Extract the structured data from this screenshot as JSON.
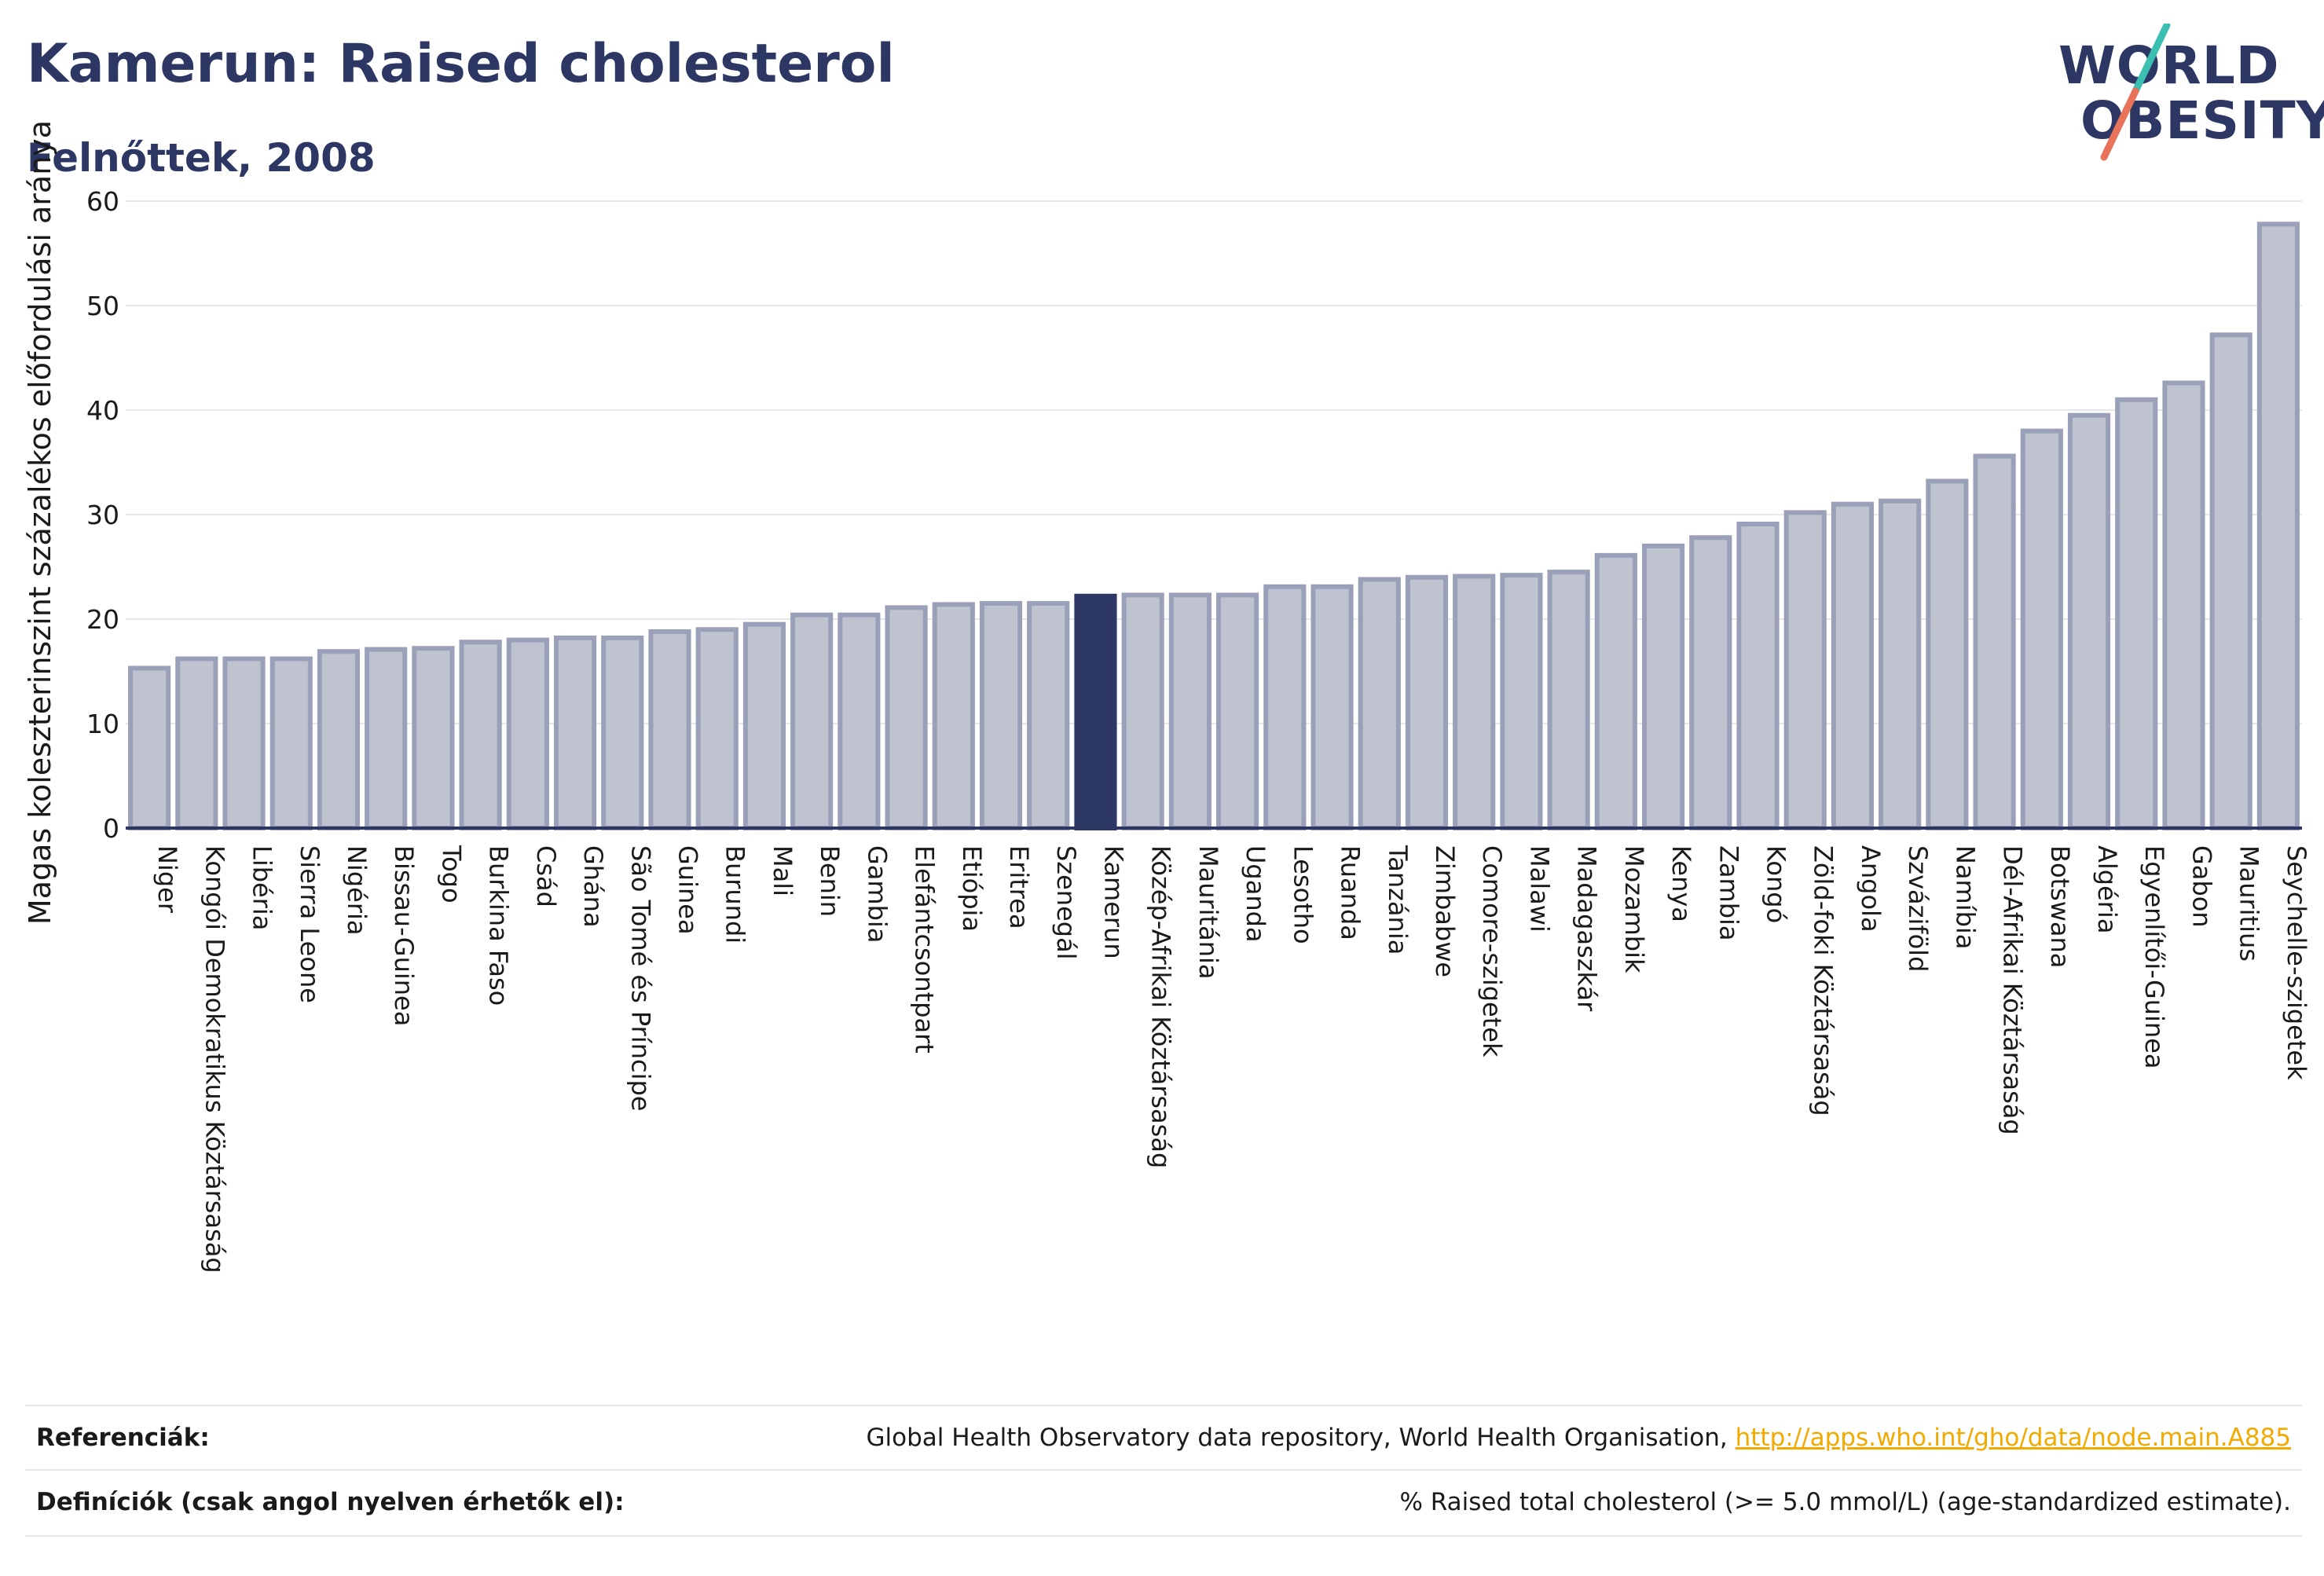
{
  "header": {
    "title": "Kamerun: Raised cholesterol",
    "subtitle": "Felnőttek, 2008"
  },
  "logo": {
    "line1": "WORLD",
    "line2": "OBESITY",
    "accent_colors": [
      "#3bbfb0",
      "#e8735a"
    ]
  },
  "footer": {
    "references_label": "Referenciák:",
    "references_text": "Global Health Observatory data repository, World Health Organisation, ",
    "references_link": "http://apps.who.int/gho/data/node.main.A885",
    "definitions_label": "Definíciók (csak angol nyelven érhetők el):",
    "definitions_text": "% Raised total cholesterol (>= 5.0 mmol/L) (age-standardized estimate)."
  },
  "colors": {
    "bar": "#bfc3d0",
    "bar_stroke": "#9aa0b8",
    "highlight": "#2c3764",
    "axis": "#2c3764",
    "grid": "#e6e8ee"
  },
  "chart_data": {
    "type": "bar",
    "ylabel": "Magas koleszterinszint százalékos előfordulási aránya",
    "ylim": [
      0,
      60
    ],
    "yticks": [
      0,
      10,
      20,
      30,
      40,
      50,
      60
    ],
    "grid": true,
    "highlight": "Kamerun",
    "categories": [
      "Niger",
      "Kongói Demokratikus Köztársaság",
      "Libéria",
      "Sierra Leone",
      "Nigéria",
      "Bissau-Guinea",
      "Togo",
      "Burkina Faso",
      "Csád",
      "Ghána",
      "São Tomé és Príncipe",
      "Guinea",
      "Burundi",
      "Mali",
      "Benin",
      "Gambia",
      "Elefántcsontpart",
      "Etiópia",
      "Eritrea",
      "Szenegál",
      "Kamerun",
      "Közép-Afrikai Köztársaság",
      "Mauritánia",
      "Uganda",
      "Lesotho",
      "Ruanda",
      "Tanzánia",
      "Zimbabwe",
      "Comore-szigetek",
      "Malawi",
      "Madagaszkár",
      "Mozambik",
      "Kenya",
      "Zambia",
      "Kongó",
      "Zöld-foki Köztársaság",
      "Angola",
      "Szváziföld",
      "Namíbia",
      "Dél-Afrikai Köztársaság",
      "Botswana",
      "Algéria",
      "Egyenlítői-Guinea",
      "Gabon",
      "Mauritius",
      "Seychelle-szigetek"
    ],
    "values": [
      15.3,
      16.2,
      16.2,
      16.2,
      16.9,
      17.1,
      17.2,
      17.8,
      18.0,
      18.2,
      18.2,
      18.8,
      19.0,
      19.5,
      20.4,
      20.4,
      21.1,
      21.4,
      21.5,
      21.5,
      22.2,
      22.3,
      22.3,
      22.3,
      23.1,
      23.1,
      23.8,
      24.0,
      24.1,
      24.2,
      24.5,
      26.1,
      27.0,
      27.8,
      29.1,
      30.2,
      31.0,
      31.3,
      33.2,
      35.6,
      38.0,
      39.5,
      41.0,
      42.6,
      47.2,
      57.8
    ]
  }
}
